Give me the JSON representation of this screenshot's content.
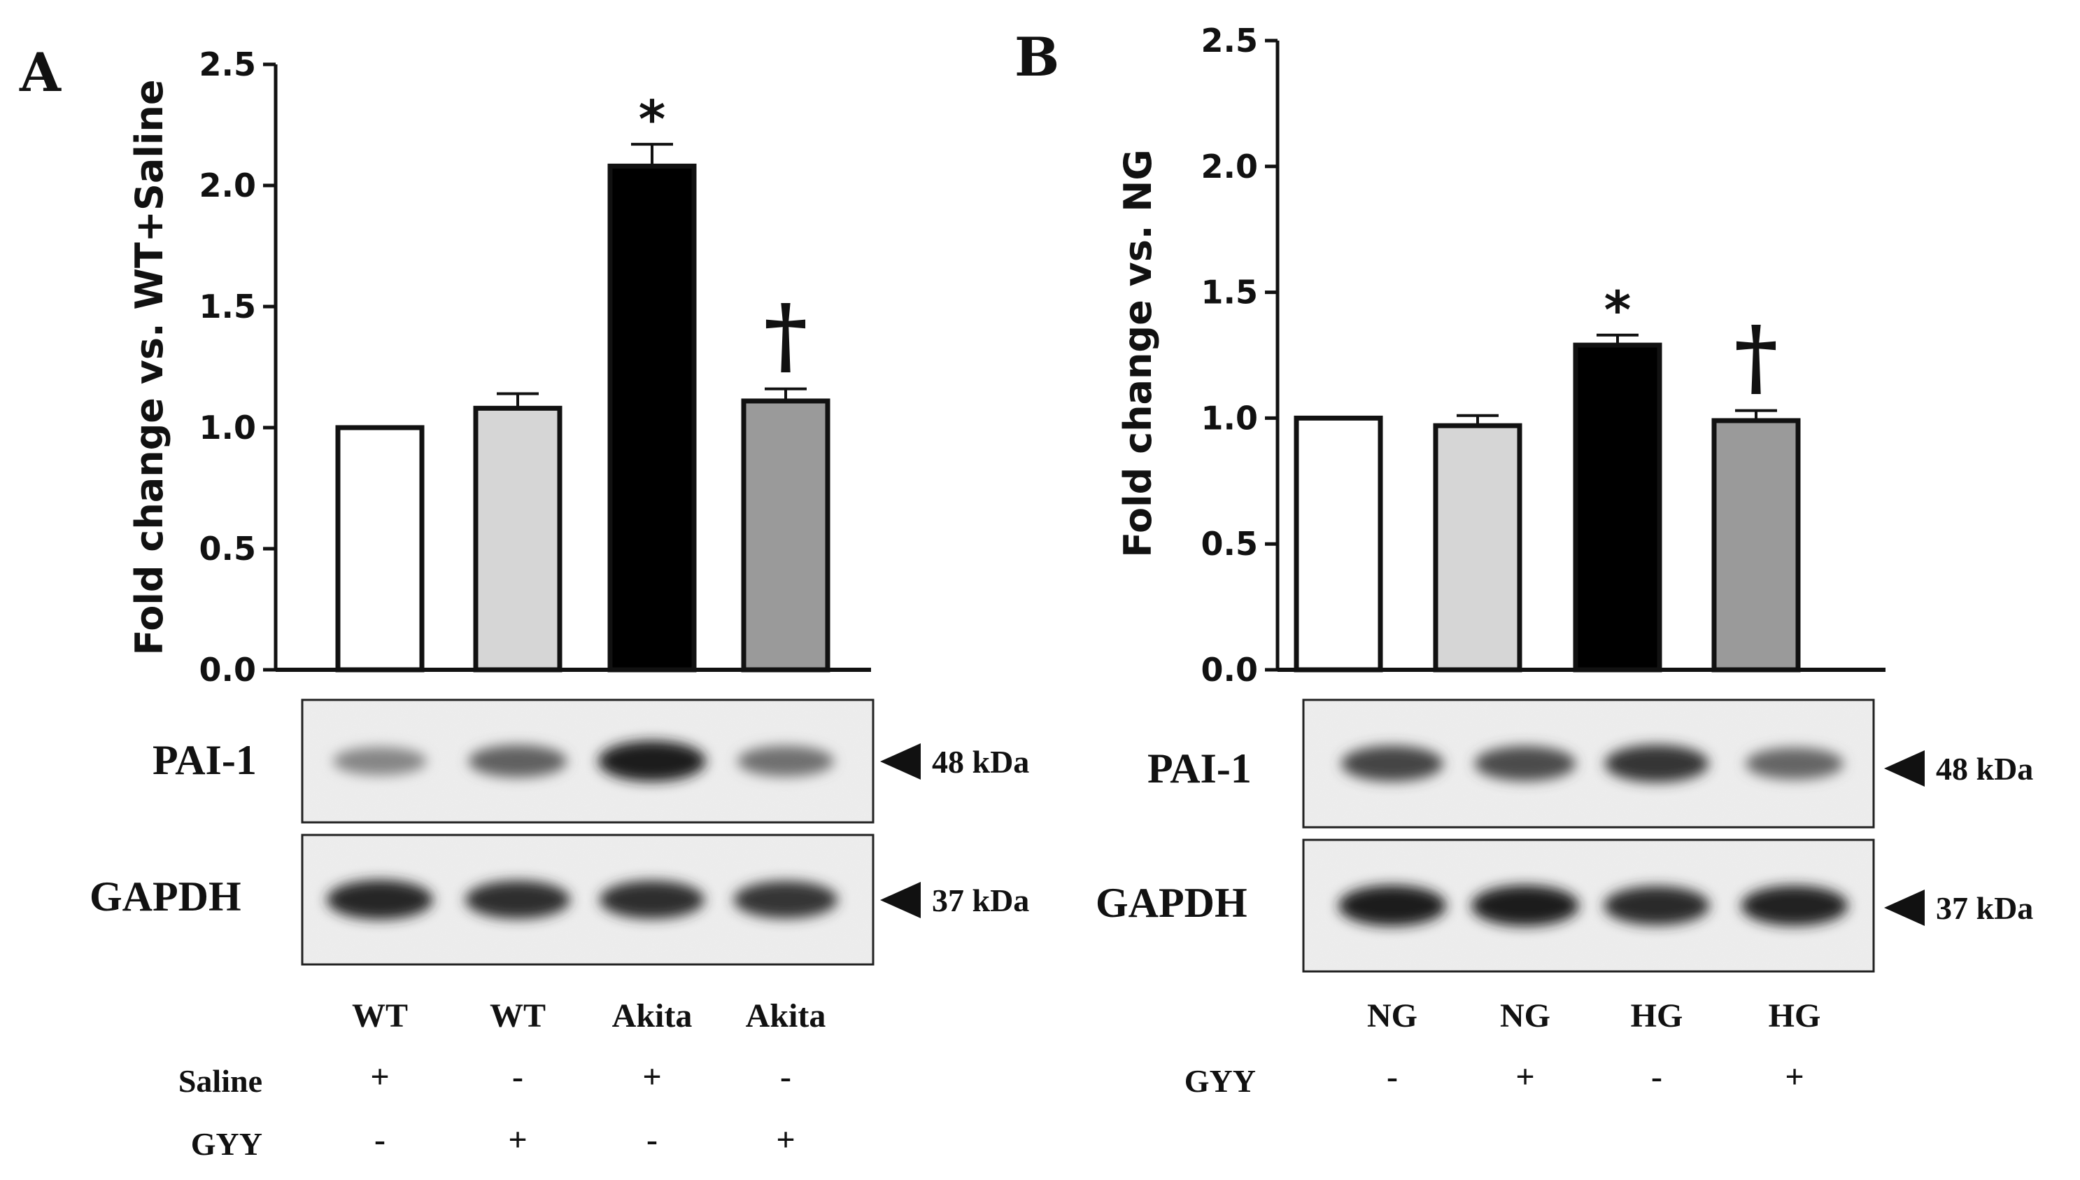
{
  "chart_data": [
    {
      "type": "bar",
      "panel": "A",
      "ylabel": "Fold change vs. WT+Saline",
      "ylim": [
        0,
        2.5
      ],
      "yticks": [
        "0.0",
        "0.5",
        "1.0",
        "1.5",
        "2.0",
        "2.5"
      ],
      "values": [
        1.0,
        1.08,
        2.08,
        1.11
      ],
      "errors": [
        0.0,
        0.06,
        0.09,
        0.05
      ],
      "bar_colors": [
        "#ffffff",
        "#d6d6d6",
        "#000000",
        "#9a9a9a"
      ],
      "significance": [
        "",
        "",
        "*",
        "†"
      ],
      "blots": [
        {
          "name": "PAI-1",
          "kda": "48 kDa",
          "intensities": [
            0.45,
            0.62,
            0.95,
            0.55
          ]
        },
        {
          "name": "GAPDH",
          "kda": "37 kDa",
          "intensities": [
            0.9,
            0.85,
            0.85,
            0.82
          ]
        }
      ],
      "conditions": [
        "WT",
        "WT",
        "Akita",
        "Akita"
      ],
      "treatment_rows": [
        {
          "label": "Saline",
          "values": [
            "+",
            "-",
            "+",
            "-"
          ]
        },
        {
          "label": "GYY",
          "values": [
            "-",
            "+",
            "-",
            "+"
          ]
        }
      ]
    },
    {
      "type": "bar",
      "panel": "B",
      "ylabel": "Fold change vs. NG",
      "ylim": [
        0,
        2.5
      ],
      "yticks": [
        "0.0",
        "0.5",
        "1.0",
        "1.5",
        "2.0",
        "2.5"
      ],
      "values": [
        1.0,
        0.97,
        1.29,
        0.99
      ],
      "errors": [
        0.0,
        0.04,
        0.04,
        0.04
      ],
      "bar_colors": [
        "#ffffff",
        "#d6d6d6",
        "#000000",
        "#9a9a9a"
      ],
      "significance": [
        "",
        "",
        "*",
        "†"
      ],
      "blots": [
        {
          "name": "PAI-1",
          "kda": "48 kDa",
          "intensities": [
            0.75,
            0.72,
            0.82,
            0.6
          ]
        },
        {
          "name": "GAPDH",
          "kda": "37 kDa",
          "intensities": [
            0.95,
            0.95,
            0.88,
            0.92
          ]
        }
      ],
      "conditions": [
        "NG",
        "NG",
        "HG",
        "HG"
      ],
      "treatment_rows": [
        {
          "label": "GYY",
          "values": [
            "-",
            "+",
            "-",
            "+"
          ]
        }
      ]
    }
  ]
}
